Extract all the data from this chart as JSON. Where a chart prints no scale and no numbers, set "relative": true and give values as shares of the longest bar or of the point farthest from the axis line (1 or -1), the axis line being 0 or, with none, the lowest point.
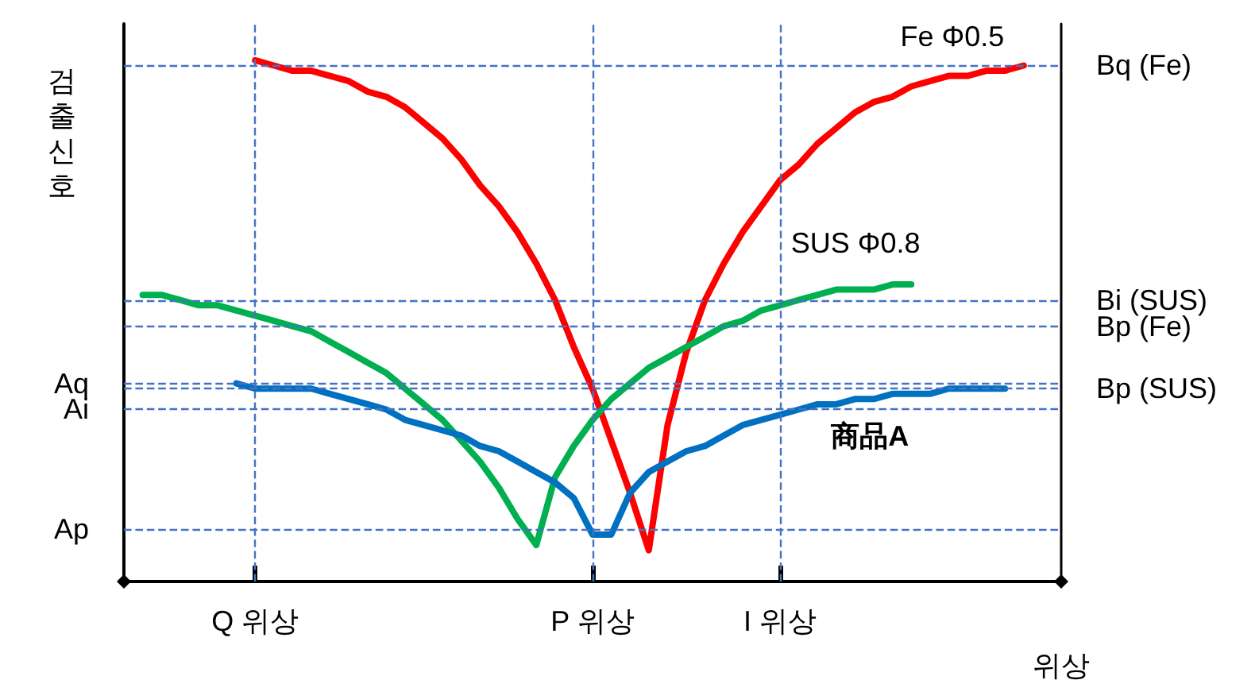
{
  "chart_data": {
    "type": "line",
    "relative": true,
    "ylabel": "검출신호",
    "xlabel": "위상",
    "categories": [
      null,
      null,
      null,
      null,
      null,
      null,
      null,
      "Q 위상",
      null,
      null,
      null,
      null,
      null,
      null,
      null,
      null,
      null,
      null,
      null,
      null,
      null,
      null,
      null,
      null,
      null,
      "P 위상",
      null,
      null,
      null,
      null,
      null,
      null,
      null,
      null,
      null,
      "I 위상",
      null,
      null,
      null,
      null,
      null,
      null,
      null,
      null,
      null,
      null,
      null,
      null,
      null,
      null,
      null
    ],
    "series": [
      {
        "name": "Fe Φ0.5",
        "color": "#ff0000",
        "values": [
          null,
          null,
          null,
          null,
          null,
          null,
          null,
          1.0,
          0.99,
          0.98,
          0.98,
          0.97,
          0.96,
          0.94,
          0.93,
          0.91,
          0.88,
          0.85,
          0.81,
          0.76,
          0.72,
          0.67,
          0.61,
          0.54,
          0.45,
          0.37,
          0.27,
          0.17,
          0.06,
          0.3,
          0.44,
          0.54,
          0.61,
          0.67,
          0.72,
          0.77,
          0.8,
          0.84,
          0.87,
          0.9,
          0.92,
          0.93,
          0.95,
          0.96,
          0.97,
          0.97,
          0.98,
          0.98,
          0.99,
          null,
          null
        ]
      },
      {
        "name": "SUS Φ0.8",
        "color": "#00b050",
        "values": [
          null,
          0.55,
          0.55,
          0.54,
          0.53,
          0.53,
          0.52,
          0.51,
          0.5,
          0.49,
          0.48,
          0.46,
          0.44,
          0.42,
          0.4,
          0.37,
          0.34,
          0.31,
          0.27,
          0.23,
          0.18,
          0.12,
          0.07,
          0.2,
          0.26,
          0.31,
          0.35,
          0.38,
          0.41,
          0.43,
          0.45,
          0.47,
          0.49,
          0.5,
          0.52,
          0.53,
          0.54,
          0.55,
          0.56,
          0.56,
          0.56,
          0.57,
          0.57,
          null,
          null,
          null,
          null,
          null,
          null,
          null,
          null
        ]
      },
      {
        "name": "商品A",
        "color": "#0070c0",
        "values": [
          null,
          null,
          null,
          null,
          null,
          null,
          0.38,
          0.37,
          0.37,
          0.37,
          0.37,
          0.36,
          0.35,
          0.34,
          0.33,
          0.31,
          0.3,
          0.29,
          0.28,
          0.26,
          0.25,
          0.23,
          0.21,
          0.19,
          0.16,
          0.09,
          0.09,
          0.17,
          0.21,
          0.23,
          0.25,
          0.26,
          0.28,
          0.3,
          0.31,
          0.32,
          0.33,
          0.34,
          0.34,
          0.35,
          0.35,
          0.36,
          0.36,
          0.36,
          0.37,
          0.37,
          0.37,
          0.37,
          null,
          null,
          null
        ]
      }
    ],
    "ref_lines": [
      {
        "axis": "y",
        "value": 0.38,
        "label": "Aq",
        "color": "#4472c4",
        "line_style": "dashed"
      },
      {
        "axis": "y",
        "value": 0.33,
        "label": "Ai",
        "color": "#4472c4",
        "line_style": "dashed"
      },
      {
        "axis": "y",
        "value": 0.1,
        "label": "Ap",
        "color": "#4472c4",
        "line_style": "dashed"
      },
      {
        "axis": "y",
        "value": 0.99,
        "label": "Bq (Fe)",
        "color": "#4472c4",
        "line_style": "dashed"
      },
      {
        "axis": "y",
        "value": 0.54,
        "label": "Bi (SUS)",
        "color": "#4472c4",
        "line_style": "dashed"
      },
      {
        "axis": "y",
        "value": 0.49,
        "label": "Bp (Fe)",
        "color": "#4472c4",
        "line_style": "dashed"
      },
      {
        "axis": "y",
        "value": 0.37,
        "label": "Bp (SUS)",
        "color": "#4472c4",
        "line_style": "dashed"
      },
      {
        "axis": "x",
        "value": "Q 위상",
        "color": "#4472c4",
        "line_style": "dashed"
      },
      {
        "axis": "x",
        "value": "P 위상",
        "color": "#4472c4",
        "line_style": "dashed"
      },
      {
        "axis": "x",
        "value": "I 위상",
        "color": "#4472c4",
        "line_style": "dashed"
      }
    ]
  }
}
